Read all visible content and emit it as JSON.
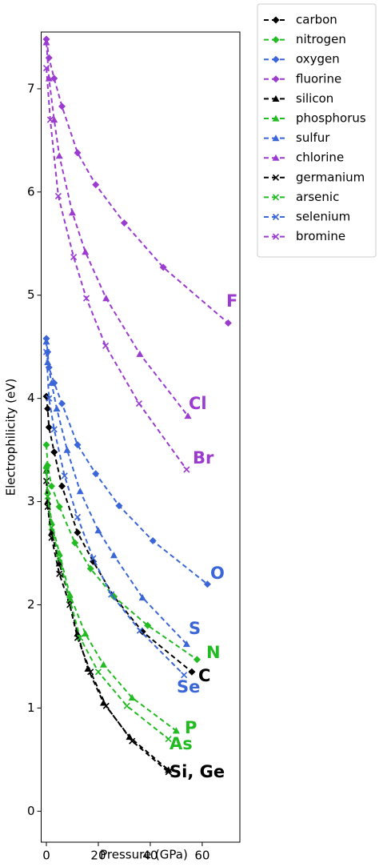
{
  "chart_data": {
    "type": "line",
    "xlabel": "Pressure (GPa)",
    "ylabel": "Electrophilicity (eV)",
    "xlim": [
      -2,
      74.5
    ],
    "ylim": [
      -0.3,
      7.55
    ],
    "xticks": [
      0,
      20,
      40,
      60
    ],
    "yticks": [
      0,
      1,
      2,
      3,
      4,
      5,
      6,
      7
    ],
    "legend": "outside right",
    "series": [
      {
        "name": "carbon",
        "color": "#000000",
        "marker": "diamond",
        "x": [
          0,
          0.5,
          1,
          3,
          6,
          12,
          18,
          26,
          37,
          56
        ],
        "values": [
          4.02,
          3.9,
          3.72,
          3.48,
          3.15,
          2.7,
          2.42,
          2.08,
          1.74,
          1.35
        ]
      },
      {
        "name": "nitrogen",
        "color": "#22bb22",
        "marker": "diamond",
        "x": [
          0,
          0.5,
          2,
          5,
          11,
          17,
          26,
          39,
          58
        ],
        "values": [
          3.55,
          3.35,
          3.15,
          2.95,
          2.6,
          2.35,
          2.08,
          1.8,
          1.47
        ]
      },
      {
        "name": "oxygen",
        "color": "#3a66d8",
        "marker": "diamond",
        "x": [
          0,
          0.5,
          1,
          3,
          6,
          12,
          19,
          28,
          41,
          62
        ],
        "values": [
          4.58,
          4.45,
          4.3,
          4.15,
          3.95,
          3.55,
          3.27,
          2.96,
          2.62,
          2.2
        ]
      },
      {
        "name": "fluorine",
        "color": "#9b3bd0",
        "marker": "diamond",
        "x": [
          0,
          1,
          3,
          6,
          12,
          19,
          30,
          45,
          70
        ],
        "values": [
          7.48,
          7.3,
          7.1,
          6.83,
          6.38,
          6.07,
          5.7,
          5.27,
          4.73
        ]
      },
      {
        "name": "silicon",
        "color": "#000000",
        "marker": "triangle",
        "x": [
          0,
          0.5,
          2,
          5,
          9,
          12,
          16,
          22,
          32,
          47
        ],
        "values": [
          3.3,
          3.0,
          2.7,
          2.4,
          2.05,
          1.72,
          1.38,
          1.05,
          0.72,
          0.4
        ]
      },
      {
        "name": "phosphorus",
        "color": "#22bb22",
        "marker": "triangle",
        "x": [
          0,
          0.5,
          2,
          5,
          9,
          15,
          22,
          33,
          50
        ],
        "values": [
          3.35,
          3.1,
          2.8,
          2.5,
          2.1,
          1.72,
          1.42,
          1.1,
          0.78
        ]
      },
      {
        "name": "sulfur",
        "color": "#3a66d8",
        "marker": "triangle",
        "x": [
          0,
          0.5,
          2,
          4,
          8,
          13,
          20,
          26,
          37,
          54
        ],
        "values": [
          4.55,
          4.35,
          4.15,
          3.9,
          3.5,
          3.1,
          2.72,
          2.48,
          2.07,
          1.62
        ]
      },
      {
        "name": "chlorine",
        "color": "#9b3bd0",
        "marker": "triangle",
        "x": [
          0,
          1,
          3,
          5,
          10,
          15,
          23,
          36,
          54.5
        ],
        "values": [
          7.45,
          7.1,
          6.7,
          6.35,
          5.8,
          5.42,
          4.97,
          4.43,
          3.83
        ]
      },
      {
        "name": "germanium",
        "color": "#000000",
        "marker": "x",
        "x": [
          0,
          0.5,
          2,
          5,
          9,
          12,
          17,
          23,
          33,
          47
        ],
        "values": [
          3.2,
          2.95,
          2.65,
          2.3,
          2.0,
          1.68,
          1.35,
          1.02,
          0.68,
          0.38
        ]
      },
      {
        "name": "arsenic",
        "color": "#22bb22",
        "marker": "x",
        "x": [
          0,
          0.5,
          2,
          5,
          9,
          13,
          20,
          31,
          47
        ],
        "values": [
          3.3,
          3.05,
          2.75,
          2.45,
          2.05,
          1.68,
          1.35,
          1.02,
          0.7
        ]
      },
      {
        "name": "selenium",
        "color": "#3a66d8",
        "marker": "x",
        "x": [
          0,
          1,
          3,
          7,
          12,
          18,
          25,
          36,
          53
        ],
        "values": [
          4.45,
          4.0,
          3.7,
          3.25,
          2.85,
          2.45,
          2.1,
          1.75,
          1.32
        ]
      },
      {
        "name": "bromine",
        "color": "#9b3bd0",
        "marker": "x",
        "x": [
          0,
          1.5,
          4.6,
          10.5,
          15.4,
          22.8,
          35.7,
          54
        ],
        "values": [
          7.2,
          6.7,
          5.96,
          5.37,
          4.97,
          4.51,
          3.95,
          3.31
        ]
      }
    ],
    "annotations": [
      {
        "text": "F",
        "color": "#9b3bd0"
      },
      {
        "text": "Cl",
        "color": "#9b3bd0"
      },
      {
        "text": "Br",
        "color": "#9b3bd0"
      },
      {
        "text": "O",
        "color": "#3a66d8"
      },
      {
        "text": "S",
        "color": "#3a66d8"
      },
      {
        "text": "N",
        "color": "#22bb22"
      },
      {
        "text": "C",
        "color": "#000000"
      },
      {
        "text": "Se",
        "color": "#3a66d8"
      },
      {
        "text": "P",
        "color": "#22bb22"
      },
      {
        "text": "As",
        "color": "#22bb22"
      },
      {
        "text": "Si, Ge",
        "color": "#000000"
      }
    ]
  }
}
